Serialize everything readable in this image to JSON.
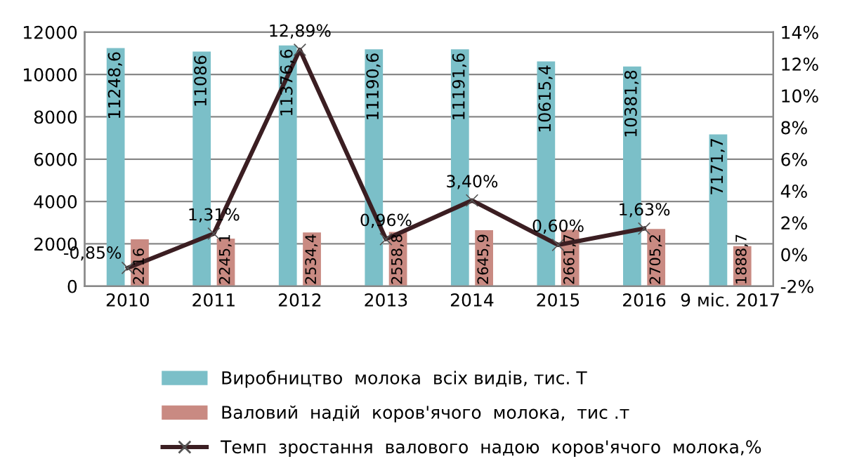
{
  "chart_data": {
    "type": "bar",
    "categories": [
      "2010",
      "2011",
      "2012",
      "2013",
      "2014",
      "2015",
      "2016",
      "9 міс. 2017"
    ],
    "series": [
      {
        "name": "Виробництво  молока  всіх видів, тис. Т",
        "color": "#7bbfc8",
        "values": [
          11248.6,
          11086,
          11376.6,
          11190.6,
          11191.6,
          10615.4,
          10381.8,
          7171.7
        ],
        "value_labels": [
          "11248,6",
          "11086",
          "11376,6",
          "11190,6",
          "11191,6",
          "10615,4",
          "10381,8",
          "7171,7"
        ]
      },
      {
        "name": "Валовий  надій  коров'ячого  молока,  тис .т",
        "color": "#c98a82",
        "values": [
          2216,
          2245.1,
          2534.4,
          2558.8,
          2645.9,
          2661.7,
          2705.2,
          1888.7
        ],
        "value_labels": [
          "2216",
          "2245,1",
          "2534,4",
          "2558,8",
          "2645,9",
          "2661,7",
          "2705,2",
          "1888,7"
        ]
      },
      {
        "name": "Темп  зростання  валового  надою  коров'ячого  молока,%",
        "type": "line",
        "axis": "y2",
        "color": "#3b1e22",
        "marker": "cross",
        "values": [
          -0.85,
          1.31,
          12.89,
          0.96,
          3.4,
          0.6,
          1.63,
          null
        ],
        "value_labels": [
          "-0,85%",
          "1,31%",
          "12,89%",
          "0,96%",
          "3,40%",
          "0,60%",
          "1,63%",
          null
        ]
      }
    ],
    "ylim": [
      0,
      12000
    ],
    "yticks": [
      0,
      2000,
      4000,
      6000,
      8000,
      10000,
      12000
    ],
    "y2lim": [
      -2,
      14
    ],
    "y2ticks": [
      {
        "value": -2,
        "label": "-2%"
      },
      {
        "value": 0,
        "label": "0%"
      },
      {
        "value": 2,
        "label": "2%"
      },
      {
        "value": 4,
        "label": "4%"
      },
      {
        "value": 6,
        "label": "6%"
      },
      {
        "value": 8,
        "label": "8%"
      },
      {
        "value": 10,
        "label": "10%"
      },
      {
        "value": 12,
        "label": "12%"
      },
      {
        "value": 14,
        "label": "14%"
      }
    ],
    "grid": "y",
    "legend": "bottom"
  }
}
